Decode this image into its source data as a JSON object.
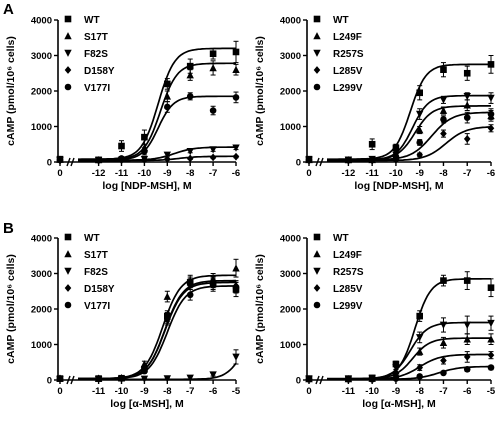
{
  "colors": {
    "ink": "#000000",
    "background": "#ffffff"
  },
  "panel_labels": [
    "A",
    "B"
  ],
  "chart_data": [
    {
      "type": "line",
      "ylabel": "cAMP (pmol/10⁶ cells)",
      "xlabel": "log [NDP-MSH], M",
      "xlim": [
        -12.9,
        -6
      ],
      "ylim": [
        0,
        4000
      ],
      "xticks": [
        0,
        -12,
        -11,
        -10,
        -9,
        -8,
        -7,
        -6
      ],
      "xtick_labels": [
        "0",
        "-12",
        "-11",
        "-10",
        "-9",
        "-8",
        "-7",
        "-6"
      ],
      "yticks": [
        0,
        1000,
        2000,
        3000,
        4000
      ],
      "axis_break": true,
      "legend_position": "top-left",
      "series": [
        {
          "name": "WT",
          "marker": "square",
          "x": [
            -13,
            -12,
            -11,
            -10,
            -9,
            -8,
            -7,
            -6
          ],
          "y": [
            80,
            60,
            450,
            700,
            2200,
            2700,
            3050,
            3100
          ],
          "err": [
            40,
            40,
            150,
            200,
            150,
            200,
            150,
            300
          ],
          "fit": {
            "bottom": 80,
            "top": 3200,
            "ec50": -9.4,
            "hill": 1.2
          }
        },
        {
          "name": "S17T",
          "marker": "triangle-up",
          "x": [
            -13,
            -12,
            -11,
            -10,
            -9,
            -8,
            -7,
            -6
          ],
          "y": [
            70,
            60,
            80,
            400,
            1850,
            2450,
            2650,
            2600
          ],
          "err": [
            40,
            40,
            60,
            100,
            150,
            150,
            200,
            150
          ],
          "fit": {
            "bottom": 70,
            "top": 2780,
            "ec50": -9.3,
            "hill": 1.2
          }
        },
        {
          "name": "F82S",
          "marker": "triangle-down",
          "x": [
            -13,
            -12,
            -11,
            -10,
            -9,
            -8,
            -7,
            -6
          ],
          "y": [
            50,
            50,
            60,
            80,
            200,
            300,
            350,
            400
          ],
          "err": [
            30,
            30,
            30,
            40,
            40,
            40,
            50,
            50
          ],
          "fit": {
            "bottom": 50,
            "top": 420,
            "ec50": -8.7,
            "hill": 1.0
          }
        },
        {
          "name": "D158Y",
          "marker": "diamond",
          "x": [
            -13,
            -12,
            -11,
            -10,
            -9,
            -8,
            -7,
            -6
          ],
          "y": [
            40,
            40,
            50,
            60,
            80,
            100,
            130,
            150
          ],
          "err": [
            20,
            20,
            20,
            20,
            30,
            30,
            30,
            30
          ],
          "fit": {
            "bottom": 40,
            "top": 160,
            "ec50": -8.5,
            "hill": 1.0
          }
        },
        {
          "name": "V177I",
          "marker": "circle",
          "x": [
            -13,
            -12,
            -11,
            -10,
            -9,
            -8,
            -7,
            -6
          ],
          "y": [
            60,
            60,
            100,
            300,
            1550,
            1850,
            1450,
            1820
          ],
          "err": [
            40,
            40,
            50,
            100,
            150,
            100,
            120,
            150
          ],
          "fit": {
            "bottom": 60,
            "top": 1850,
            "ec50": -9.4,
            "hill": 1.3
          }
        }
      ]
    },
    {
      "type": "line",
      "ylabel": "cAMP (pmol/10⁶ cells)",
      "xlabel": "log [NDP-MSH], M",
      "xlim": [
        -12.9,
        -6
      ],
      "ylim": [
        0,
        4000
      ],
      "xticks": [
        0,
        -12,
        -11,
        -10,
        -9,
        -8,
        -7,
        -6
      ],
      "xtick_labels": [
        "0",
        "-12",
        "-11",
        "-10",
        "-9",
        "-8",
        "-7",
        "-6"
      ],
      "yticks": [
        0,
        1000,
        2000,
        3000,
        4000
      ],
      "axis_break": true,
      "legend_position": "top-left",
      "series": [
        {
          "name": "WT",
          "marker": "square",
          "x": [
            -13,
            -12,
            -11,
            -10,
            -9,
            -8,
            -7,
            -6
          ],
          "y": [
            80,
            60,
            500,
            400,
            1950,
            2600,
            2500,
            2750
          ],
          "err": [
            40,
            40,
            150,
            100,
            200,
            200,
            200,
            250
          ],
          "fit": {
            "bottom": 80,
            "top": 2750,
            "ec50": -9.4,
            "hill": 1.3
          }
        },
        {
          "name": "L249F",
          "marker": "triangle-up",
          "x": [
            -13,
            -12,
            -11,
            -10,
            -9,
            -8,
            -7,
            -6
          ],
          "y": [
            60,
            60,
            60,
            150,
            900,
            1450,
            1600,
            1300
          ],
          "err": [
            30,
            30,
            30,
            60,
            100,
            100,
            150,
            150
          ],
          "fit": {
            "bottom": 60,
            "top": 1580,
            "ec50": -9.2,
            "hill": 1.2
          }
        },
        {
          "name": "R257S",
          "marker": "triangle-down",
          "x": [
            -13,
            -12,
            -11,
            -10,
            -9,
            -8,
            -7,
            -6
          ],
          "y": [
            60,
            60,
            80,
            200,
            1350,
            1750,
            1850,
            1800
          ],
          "err": [
            30,
            30,
            40,
            80,
            150,
            100,
            100,
            150
          ],
          "fit": {
            "bottom": 60,
            "top": 1870,
            "ec50": -9.3,
            "hill": 1.3
          }
        },
        {
          "name": "L285V",
          "marker": "diamond",
          "x": [
            -13,
            -12,
            -11,
            -10,
            -9,
            -8,
            -7,
            -6
          ],
          "y": [
            40,
            40,
            40,
            60,
            200,
            800,
            650,
            950
          ],
          "err": [
            20,
            20,
            20,
            30,
            50,
            100,
            150,
            100
          ],
          "fit": {
            "bottom": 40,
            "top": 1000,
            "ec50": -7.9,
            "hill": 1.0
          }
        },
        {
          "name": "L299V",
          "marker": "circle",
          "x": [
            -13,
            -12,
            -11,
            -10,
            -9,
            -8,
            -7,
            -6
          ],
          "y": [
            60,
            60,
            70,
            150,
            550,
            1200,
            1250,
            1350
          ],
          "err": [
            30,
            30,
            30,
            60,
            80,
            100,
            150,
            150
          ],
          "fit": {
            "bottom": 60,
            "top": 1400,
            "ec50": -8.5,
            "hill": 1.0
          }
        }
      ]
    },
    {
      "type": "line",
      "ylabel": "cAMP (pmol/10⁶ cells)",
      "xlabel": "log [α-MSH], M",
      "xlim": [
        -11.9,
        -5
      ],
      "ylim": [
        0,
        4000
      ],
      "xticks": [
        0,
        -11,
        -10,
        -9,
        -8,
        -7,
        -6,
        -5
      ],
      "xtick_labels": [
        "0",
        "-11",
        "-10",
        "-9",
        "-8",
        "-7",
        "-6",
        "-5"
      ],
      "yticks": [
        0,
        1000,
        2000,
        3000,
        4000
      ],
      "axis_break": true,
      "legend_position": "top-left",
      "series": [
        {
          "name": "WT",
          "marker": "square",
          "x": [
            -12,
            -11,
            -10,
            -9,
            -8,
            -7,
            -6,
            -5
          ],
          "y": [
            40,
            40,
            50,
            300,
            1800,
            2750,
            2700,
            2550
          ],
          "err": [
            20,
            20,
            20,
            60,
            150,
            150,
            200,
            200
          ],
          "fit": {
            "bottom": 40,
            "top": 2800,
            "ec50": -8.1,
            "hill": 1.1
          }
        },
        {
          "name": "S17T",
          "marker": "triangle-up",
          "x": [
            -12,
            -11,
            -10,
            -9,
            -8,
            -7,
            -6,
            -5
          ],
          "y": [
            40,
            40,
            60,
            450,
            2350,
            2800,
            2850,
            3150
          ],
          "err": [
            20,
            20,
            30,
            80,
            150,
            150,
            150,
            250
          ],
          "fit": {
            "bottom": 40,
            "top": 2950,
            "ec50": -8.2,
            "hill": 1.1
          }
        },
        {
          "name": "F82S",
          "marker": "triangle-down",
          "x": [
            -12,
            -11,
            -10,
            -9,
            -8,
            -7,
            -6,
            -5
          ],
          "y": [
            20,
            20,
            20,
            30,
            40,
            60,
            150,
            650
          ],
          "err": [
            10,
            10,
            10,
            10,
            20,
            30,
            40,
            200
          ],
          "fit": {
            "bottom": 20,
            "top": 1500,
            "ec50": -4.7,
            "hill": 1.2
          }
        },
        {
          "name": "D158Y",
          "marker": "diamond",
          "x": [
            -12,
            -11,
            -10,
            -9,
            -8,
            -7,
            -6,
            -5
          ],
          "y": [
            40,
            40,
            50,
            350,
            1700,
            2700,
            2750,
            2650
          ],
          "err": [
            20,
            20,
            30,
            60,
            150,
            150,
            150,
            150
          ],
          "fit": {
            "bottom": 40,
            "top": 2750,
            "ec50": -8.1,
            "hill": 1.1
          }
        },
        {
          "name": "V177I",
          "marker": "circle",
          "x": [
            -12,
            -11,
            -10,
            -9,
            -8,
            -7,
            -6,
            -5
          ],
          "y": [
            40,
            40,
            50,
            250,
            1750,
            2400,
            2700,
            2600
          ],
          "err": [
            20,
            20,
            20,
            60,
            150,
            150,
            150,
            150
          ],
          "fit": {
            "bottom": 40,
            "top": 2650,
            "ec50": -8.0,
            "hill": 1.1
          }
        }
      ]
    },
    {
      "type": "line",
      "ylabel": "cAMP (pmol/10⁶ cells)",
      "xlabel": "log [α-MSH], M",
      "xlim": [
        -11.9,
        -5
      ],
      "ylim": [
        0,
        4000
      ],
      "xticks": [
        0,
        -11,
        -10,
        -9,
        -8,
        -7,
        -6,
        -5
      ],
      "xtick_labels": [
        "0",
        "-11",
        "-10",
        "-9",
        "-8",
        "-7",
        "-6",
        "-5"
      ],
      "yticks": [
        0,
        1000,
        2000,
        3000,
        4000
      ],
      "axis_break": true,
      "legend_position": "top-left",
      "series": [
        {
          "name": "WT",
          "marker": "square",
          "x": [
            -12,
            -11,
            -10,
            -9,
            -8,
            -7,
            -6,
            -5
          ],
          "y": [
            40,
            40,
            60,
            450,
            1800,
            2800,
            2800,
            2600
          ],
          "err": [
            20,
            20,
            30,
            80,
            150,
            150,
            250,
            250
          ],
          "fit": {
            "bottom": 40,
            "top": 2850,
            "ec50": -8.2,
            "hill": 1.3
          }
        },
        {
          "name": "L249F",
          "marker": "triangle-up",
          "x": [
            -12,
            -11,
            -10,
            -9,
            -8,
            -7,
            -6,
            -5
          ],
          "y": [
            30,
            30,
            40,
            250,
            800,
            1050,
            1150,
            1150
          ],
          "err": [
            15,
            15,
            20,
            50,
            100,
            150,
            150,
            150
          ],
          "fit": {
            "bottom": 30,
            "top": 1180,
            "ec50": -8.3,
            "hill": 1.2
          }
        },
        {
          "name": "R257S",
          "marker": "triangle-down",
          "x": [
            -12,
            -11,
            -10,
            -9,
            -8,
            -7,
            -6,
            -5
          ],
          "y": [
            30,
            30,
            50,
            350,
            1200,
            1550,
            1550,
            1600
          ],
          "err": [
            15,
            15,
            20,
            60,
            150,
            200,
            250,
            200
          ],
          "fit": {
            "bottom": 30,
            "top": 1620,
            "ec50": -8.4,
            "hill": 1.2
          }
        },
        {
          "name": "L285V",
          "marker": "diamond",
          "x": [
            -12,
            -11,
            -10,
            -9,
            -8,
            -7,
            -6,
            -5
          ],
          "y": [
            20,
            20,
            30,
            120,
            350,
            550,
            650,
            700
          ],
          "err": [
            10,
            10,
            15,
            40,
            80,
            100,
            150,
            100
          ],
          "fit": {
            "bottom": 20,
            "top": 720,
            "ec50": -8.0,
            "hill": 1.0
          }
        },
        {
          "name": "L299V",
          "marker": "circle",
          "x": [
            -12,
            -11,
            -10,
            -9,
            -8,
            -7,
            -6,
            -5
          ],
          "y": [
            20,
            20,
            20,
            40,
            100,
            200,
            300,
            350
          ],
          "err": [
            10,
            10,
            10,
            15,
            30,
            40,
            60,
            60
          ],
          "fit": {
            "bottom": 20,
            "top": 380,
            "ec50": -7.2,
            "hill": 1.0
          }
        }
      ]
    }
  ]
}
